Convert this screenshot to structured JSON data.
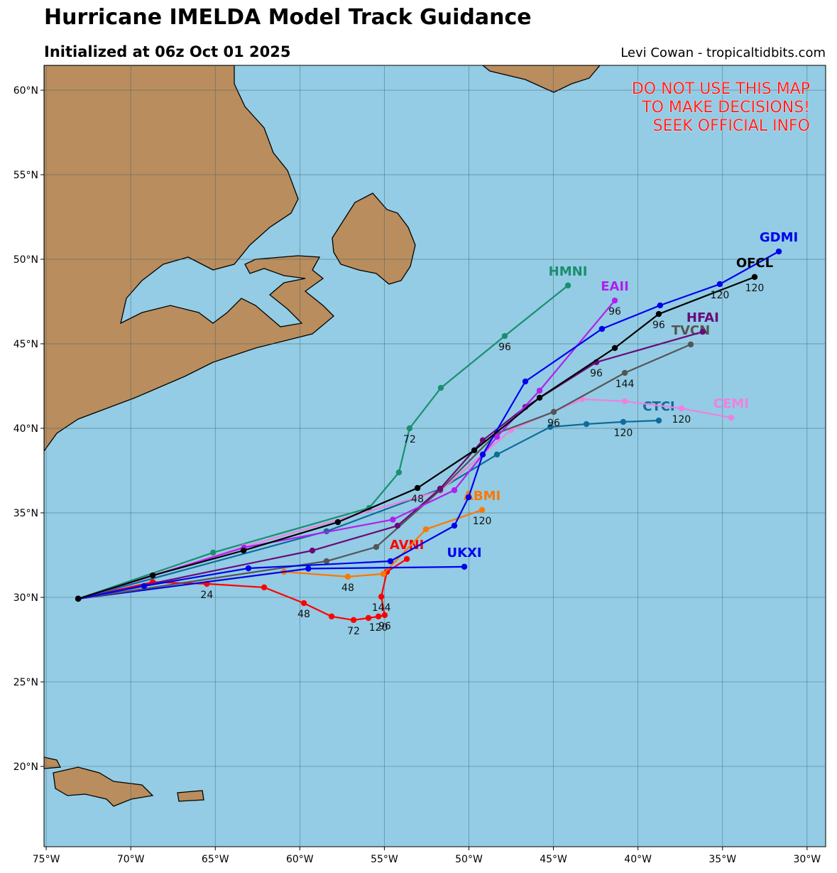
{
  "chart_data": {
    "type": "track-map",
    "title": "Hurricane IMELDA Model Track Guidance",
    "subtitle": "Initialized at 06z Oct 01 2025",
    "credit": "Levi Cowan - tropicaltidbits.com",
    "warning": [
      "DO NOT USE THIS MAP",
      "TO MAKE DECISIONS!",
      "SEEK OFFICIAL INFO"
    ],
    "xlim": [
      -75.13,
      -28.9
    ],
    "ylim": [
      15.25,
      61.47
    ],
    "grid": true,
    "xticks": [
      {
        "value": -75,
        "label": "75°W"
      },
      {
        "value": -70,
        "label": "70°W"
      },
      {
        "value": -65,
        "label": "65°W"
      },
      {
        "value": -60,
        "label": "60°W"
      },
      {
        "value": -55,
        "label": "55°W"
      },
      {
        "value": -50,
        "label": "50°W"
      },
      {
        "value": -45,
        "label": "45°W"
      },
      {
        "value": -40,
        "label": "40°W"
      },
      {
        "value": -35,
        "label": "35°W"
      },
      {
        "value": -30,
        "label": "30°W"
      }
    ],
    "yticks": [
      {
        "value": 20,
        "label": "20°N"
      },
      {
        "value": 25,
        "label": "25°N"
      },
      {
        "value": 30,
        "label": "30°N"
      },
      {
        "value": 35,
        "label": "35°N"
      },
      {
        "value": 40,
        "label": "40°N"
      },
      {
        "value": 45,
        "label": "45°N"
      },
      {
        "value": 50,
        "label": "50°N"
      },
      {
        "value": 55,
        "label": "55°N"
      },
      {
        "value": 60,
        "label": "60°N"
      }
    ],
    "tracks": [
      {
        "name": "HMNI",
        "color": "#1a8f6e",
        "points": [
          {
            "lon": -73.11,
            "lat": 29.92
          },
          {
            "lon": -65.13,
            "lat": 32.65
          },
          {
            "lon": -55.9,
            "lat": 35.29
          },
          {
            "lon": -54.14,
            "lat": 37.39
          },
          {
            "lon": -53.51,
            "lat": 40.0,
            "hour": 72
          },
          {
            "lon": -51.66,
            "lat": 42.39
          },
          {
            "lon": -47.88,
            "lat": 45.46,
            "hour": 96
          },
          {
            "lon": -44.14,
            "lat": 48.45
          }
        ]
      },
      {
        "name": "AVNI",
        "color": "#ff0000",
        "points": [
          {
            "lon": -73.11,
            "lat": 29.92
          },
          {
            "lon": -68.7,
            "lat": 30.9
          },
          {
            "lon": -65.5,
            "lat": 30.8,
            "hour": 24
          },
          {
            "lon": -62.11,
            "lat": 30.59
          },
          {
            "lon": -59.76,
            "lat": 29.66,
            "hour": 48
          },
          {
            "lon": -58.12,
            "lat": 28.87
          },
          {
            "lon": -56.82,
            "lat": 28.66,
            "hour": 72
          },
          {
            "lon": -55.94,
            "lat": 28.78
          },
          {
            "lon": -55.35,
            "lat": 28.87,
            "hour": 120
          },
          {
            "lon": -54.98,
            "lat": 28.95,
            "hour": 96
          },
          {
            "lon": -55.18,
            "lat": 30.04,
            "hour": 144
          },
          {
            "lon": -54.85,
            "lat": 31.51
          },
          {
            "lon": -53.67,
            "lat": 32.27
          }
        ]
      },
      {
        "name": "ABMI",
        "color": "#ff7700",
        "points": [
          {
            "lon": -73.11,
            "lat": 29.92
          },
          {
            "lon": -60.94,
            "lat": 31.51
          },
          {
            "lon": -57.16,
            "lat": 31.22,
            "hour": 48
          },
          {
            "lon": -55.06,
            "lat": 31.39
          },
          {
            "lon": -52.54,
            "lat": 34.03
          },
          {
            "lon": -49.22,
            "lat": 35.17,
            "hour": 120
          }
        ]
      },
      {
        "name": "UKXI",
        "color": "#0000ee",
        "points": [
          {
            "lon": -73.11,
            "lat": 29.92
          },
          {
            "lon": -59.5,
            "lat": 31.7
          },
          {
            "lon": -50.27,
            "lat": 31.81
          }
        ]
      },
      {
        "name": "CTCI",
        "color": "#106b9a",
        "points": [
          {
            "lon": -73.11,
            "lat": 29.92
          },
          {
            "lon": -58.42,
            "lat": 33.91
          },
          {
            "lon": -51.7,
            "lat": 36.4
          },
          {
            "lon": -48.34,
            "lat": 38.45
          },
          {
            "lon": -45.19,
            "lat": 40.08
          },
          {
            "lon": -43.05,
            "lat": 40.25
          },
          {
            "lon": -40.87,
            "lat": 40.38,
            "hour": 120
          },
          {
            "lon": -38.77,
            "lat": 40.46
          }
        ]
      },
      {
        "name": "CEMI",
        "color": "#f080e0",
        "points": [
          {
            "lon": -73.11,
            "lat": 29.92
          },
          {
            "lon": -63.3,
            "lat": 33.0
          },
          {
            "lon": -51.7,
            "lat": 36.3
          },
          {
            "lon": -47.5,
            "lat": 39.9
          },
          {
            "lon": -43.3,
            "lat": 41.72
          },
          {
            "lon": -40.78,
            "lat": 41.6
          },
          {
            "lon": -37.43,
            "lat": 41.18,
            "hour": 120
          },
          {
            "lon": -34.49,
            "lat": 40.63
          }
        ]
      },
      {
        "name": "TVCN",
        "color": "#555555",
        "points": [
          {
            "lon": -73.11,
            "lat": 29.92
          },
          {
            "lon": -58.42,
            "lat": 32.14
          },
          {
            "lon": -55.48,
            "lat": 32.98
          },
          {
            "lon": -51.7,
            "lat": 36.34
          },
          {
            "lon": -48.34,
            "lat": 39.71
          },
          {
            "lon": -44.98,
            "lat": 40.97,
            "hour": 96
          },
          {
            "lon": -40.78,
            "lat": 43.28,
            "hour": 144
          },
          {
            "lon": -36.88,
            "lat": 44.96
          }
        ]
      },
      {
        "name": "HFAI",
        "color": "#6a0a7a",
        "points": [
          {
            "lon": -73.11,
            "lat": 29.92
          },
          {
            "lon": -59.26,
            "lat": 32.77
          },
          {
            "lon": -54.22,
            "lat": 34.24
          },
          {
            "lon": -51.7,
            "lat": 36.43
          },
          {
            "lon": -49.18,
            "lat": 39.29
          },
          {
            "lon": -46.66,
            "lat": 41.26
          },
          {
            "lon": -42.46,
            "lat": 43.91,
            "hour": 96
          },
          {
            "lon": -36.17,
            "lat": 45.71
          }
        ]
      },
      {
        "name": "EAII",
        "color": "#b020f0",
        "points": [
          {
            "lon": -73.11,
            "lat": 29.92
          },
          {
            "lon": -63.3,
            "lat": 32.95
          },
          {
            "lon": -54.5,
            "lat": 34.6
          },
          {
            "lon": -50.86,
            "lat": 36.34
          },
          {
            "lon": -48.34,
            "lat": 39.5
          },
          {
            "lon": -45.82,
            "lat": 42.23
          },
          {
            "lon": -41.37,
            "lat": 47.56,
            "hour": 96
          }
        ]
      },
      {
        "name": "GDMI",
        "color": "#0000ee",
        "points": [
          {
            "lon": -73.11,
            "lat": 29.92
          },
          {
            "lon": -69.21,
            "lat": 30.67
          },
          {
            "lon": -63.04,
            "lat": 31.72
          },
          {
            "lon": -54.64,
            "lat": 32.14
          },
          {
            "lon": -50.86,
            "lat": 34.24
          },
          {
            "lon": -50.02,
            "lat": 35.92
          },
          {
            "lon": -49.18,
            "lat": 38.45
          },
          {
            "lon": -46.66,
            "lat": 42.77
          },
          {
            "lon": -42.13,
            "lat": 45.88
          },
          {
            "lon": -38.69,
            "lat": 47.27
          },
          {
            "lon": -35.16,
            "lat": 48.53,
            "hour": 120
          },
          {
            "lon": -31.67,
            "lat": 50.46
          }
        ]
      },
      {
        "name": "OFCL",
        "color": "#000000",
        "points": [
          {
            "lon": -73.11,
            "lat": 29.92
          },
          {
            "lon": -68.7,
            "lat": 31.3
          },
          {
            "lon": -63.33,
            "lat": 32.77
          },
          {
            "lon": -57.75,
            "lat": 34.45
          },
          {
            "lon": -53.04,
            "lat": 36.47,
            "hour": 48
          },
          {
            "lon": -49.68,
            "lat": 38.7
          },
          {
            "lon": -45.82,
            "lat": 41.81
          },
          {
            "lon": -41.37,
            "lat": 44.75
          },
          {
            "lon": -38.77,
            "lat": 46.76,
            "hour": 96
          },
          {
            "lon": -33.1,
            "lat": 48.95,
            "hour": 120
          }
        ]
      }
    ]
  }
}
